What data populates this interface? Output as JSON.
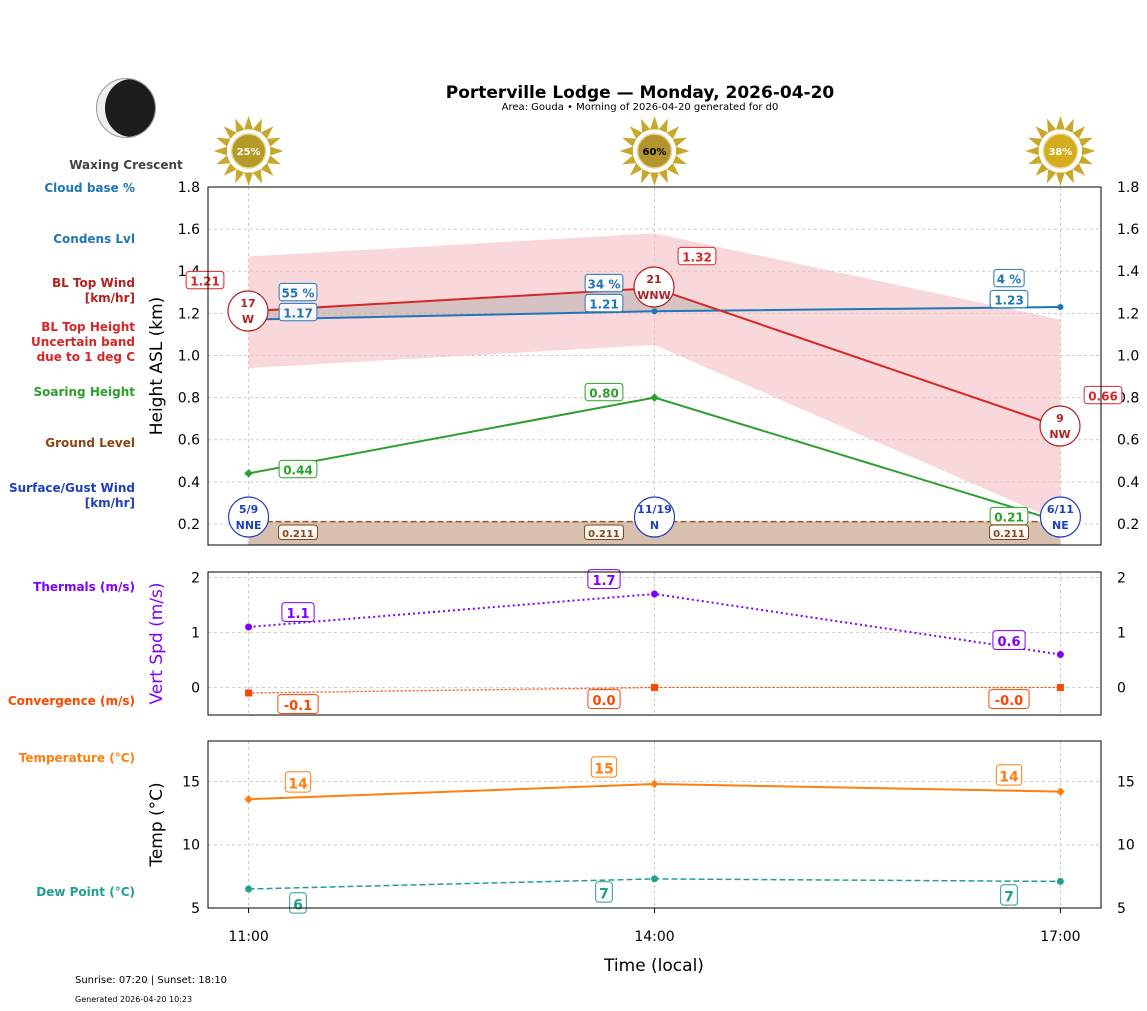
{
  "header": {
    "title": "Porterville Lodge — Monday, 2026-04-20",
    "subtitle": "Area: Gouda • Morning of 2026-04-20 generated for d0",
    "moon_phase": "Waxing Crescent"
  },
  "footer": {
    "sun": "Sunrise: 07:20 | Sunset: 18:10",
    "generated": "Generated 2026-04-20 10:23"
  },
  "side_labels": [
    {
      "text": "Cloud base %",
      "color": "#1f77b4"
    },
    {
      "text": "Condens Lvl",
      "color": "#1f77b4"
    },
    {
      "text": "BL Top Wind\n[km/hr]",
      "color": "#b22222"
    },
    {
      "text": "BL Top Height\nUncertain band\ndue to 1 deg C",
      "color": "#d62728"
    },
    {
      "text": "Soaring Height",
      "color": "#2ca02c"
    },
    {
      "text": "Ground Level",
      "color": "#8b4513"
    },
    {
      "text": "Surface/Gust Wind\n[km/hr]",
      "color": "#1f3fbf"
    },
    {
      "text": "Thermals (m/s)",
      "color": "#7f00ff"
    },
    {
      "text": "Convergence (m/s)",
      "color": "#ff4500"
    },
    {
      "text": "Temperature (°C)",
      "color": "#ff7f0e"
    },
    {
      "text": "Dew Point (°C)",
      "color": "#20a090"
    }
  ],
  "chart_data": [
    {
      "type": "line",
      "ylabel": "Height ASL (km)",
      "ylim": [
        0.1,
        1.8
      ],
      "yticks": [
        "0.2",
        "0.4",
        "0.6",
        "0.8",
        "1.0",
        "1.2",
        "1.4",
        "1.6",
        "1.8"
      ],
      "grid": true,
      "x": [
        "11:00",
        "14:00",
        "17:00"
      ],
      "sun_percent": [
        "25%",
        "60%",
        "38%"
      ],
      "series": [
        {
          "key": "bl_top",
          "values": [
            1.21,
            1.32,
            0.66
          ],
          "labels": [
            "1.21",
            "1.32",
            "0.66"
          ],
          "color": "#d62728"
        },
        {
          "key": "band_upper",
          "values": [
            1.47,
            1.58,
            1.17
          ]
        },
        {
          "key": "band_lower",
          "values": [
            0.94,
            1.05,
            0.21
          ]
        },
        {
          "key": "condens",
          "values": [
            1.17,
            1.21,
            1.23
          ],
          "labels": [
            "1.17",
            "1.21",
            "1.23"
          ],
          "color": "#1f77b4"
        },
        {
          "key": "cloud_base_pct",
          "labels": [
            "55 %",
            "34 %",
            "4 %"
          ]
        },
        {
          "key": "soaring",
          "values": [
            0.44,
            0.8,
            0.21
          ],
          "labels": [
            "0.44",
            "0.80",
            "0.21"
          ],
          "color": "#2ca02c"
        },
        {
          "key": "ground",
          "values": [
            0.211,
            0.211,
            0.211
          ],
          "labels": [
            "0.211",
            "0.211",
            "0.211"
          ],
          "color": "#8b4513"
        }
      ],
      "bl_wind": [
        {
          "speed": "17",
          "dir": "W"
        },
        {
          "speed": "21",
          "dir": "WNW"
        },
        {
          "speed": "9",
          "dir": "NW"
        }
      ],
      "surface_wind": [
        {
          "speed": "5/9",
          "dir": "NNE"
        },
        {
          "speed": "11/19",
          "dir": "N"
        },
        {
          "speed": "6/11",
          "dir": "NE"
        }
      ]
    },
    {
      "type": "line",
      "ylabel": "Vert Spd (m/s)",
      "ylim": [
        -0.5,
        2.1
      ],
      "yticks": [
        "0",
        "1",
        "2"
      ],
      "grid": true,
      "series": [
        {
          "key": "thermals",
          "values": [
            1.1,
            1.7,
            0.6
          ],
          "labels": [
            "1.1",
            "1.7",
            "0.6"
          ],
          "color": "#7f00ff"
        },
        {
          "key": "convergence",
          "values": [
            -0.1,
            0.0,
            0.0
          ],
          "labels": [
            "-0.1",
            "0.0",
            "-0.0"
          ],
          "color": "#ff4500"
        }
      ]
    },
    {
      "type": "line",
      "ylabel": "Temp (°C)",
      "xlabel": "Time (local)",
      "ylim": [
        5,
        18.2
      ],
      "yticks": [
        "5",
        "10",
        "15"
      ],
      "xticks": [
        "11:00",
        "14:00",
        "17:00"
      ],
      "grid": true,
      "series": [
        {
          "key": "temperature",
          "values": [
            13.6,
            14.8,
            14.2
          ],
          "labels": [
            "14",
            "15",
            "14"
          ],
          "color": "#ff7f0e"
        },
        {
          "key": "dewpoint",
          "values": [
            6.5,
            7.3,
            7.1
          ],
          "labels": [
            "6",
            "7",
            "7"
          ],
          "color": "#20a090"
        }
      ]
    }
  ]
}
